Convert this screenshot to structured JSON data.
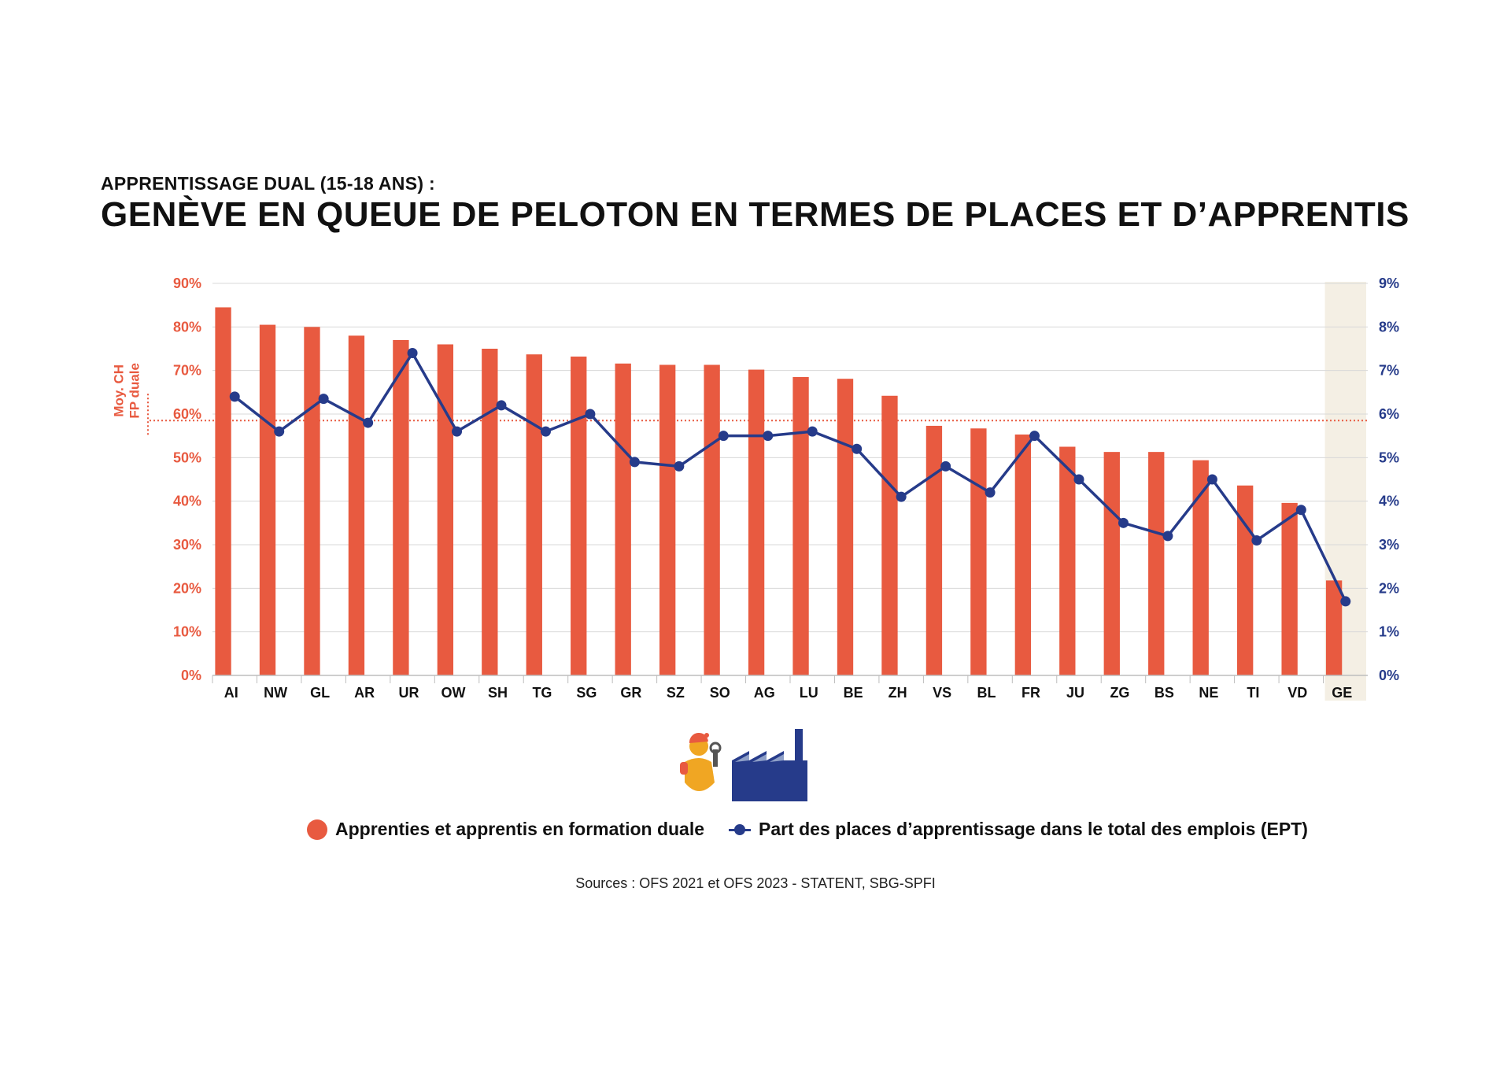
{
  "header": {
    "subtitle": "APPRENTISSAGE DUAL (15-18 ANS) :",
    "title": "GENÈVE EN QUEUE DE PELOTON EN TERMES DE PLACES ET D’APPRENTIS"
  },
  "colors": {
    "bar": "#e85a40",
    "line": "#263b8a",
    "highlight_bg": "#f4efe4",
    "grid": "#d8d8d8",
    "avg_line": "#e85a40"
  },
  "chart_data": {
    "type": "bar+line",
    "categories": [
      "AI",
      "NW",
      "GL",
      "AR",
      "UR",
      "OW",
      "SH",
      "TG",
      "SG",
      "GR",
      "SZ",
      "SO",
      "AG",
      "LU",
      "BE",
      "ZH",
      "VS",
      "BL",
      "FR",
      "JU",
      "ZG",
      "BS",
      "NE",
      "TI",
      "VD",
      "GE"
    ],
    "highlight_category": "GE",
    "series": [
      {
        "name": "Apprenties et apprentis en formation duale",
        "type": "bar",
        "axis": "left",
        "values": [
          84.5,
          80.5,
          80,
          78,
          77,
          76,
          75,
          73.7,
          73.2,
          71.6,
          71.3,
          71.3,
          70.2,
          68.5,
          68.1,
          64.2,
          57.3,
          56.7,
          55.3,
          52.5,
          51.3,
          51.3,
          49.4,
          43.6,
          39.6,
          21.8
        ]
      },
      {
        "name": "Part des places d’apprentissage dans le total des emplois (EPT)",
        "type": "line",
        "axis": "right",
        "values": [
          6.4,
          5.6,
          6.35,
          5.8,
          7.4,
          5.6,
          6.2,
          5.6,
          6.0,
          4.9,
          4.8,
          5.5,
          5.5,
          5.6,
          5.2,
          4.1,
          4.8,
          4.2,
          5.5,
          4.5,
          3.5,
          3.2,
          4.5,
          3.1,
          3.8,
          1.7
        ]
      }
    ],
    "left_axis": {
      "ylim": [
        0,
        90
      ],
      "ticks": [
        0,
        10,
        20,
        30,
        40,
        50,
        60,
        70,
        80,
        90
      ],
      "tick_labels": [
        "0%",
        "10%",
        "20%",
        "30%",
        "40%",
        "50%",
        "60%",
        "70%",
        "80%",
        "90%"
      ]
    },
    "right_axis": {
      "ylim": [
        0,
        9
      ],
      "ticks": [
        0,
        1,
        2,
        3,
        4,
        5,
        6,
        7,
        8,
        9
      ],
      "tick_labels": [
        "0%",
        "1%",
        "2%",
        "3%",
        "4%",
        "5%",
        "6%",
        "7%",
        "8%",
        "9%"
      ]
    },
    "average_line": {
      "value": 58.5,
      "label_line1": "Moy. CH",
      "label_line2": "FP duale"
    }
  },
  "legend": {
    "bar_label": "Apprenties et apprentis en formation duale",
    "line_label": "Part des places d’apprentissage dans le total des emplois (EPT)"
  },
  "sources": "Sources : OFS 2021 et OFS 2023 - STATENT, SBG-SPFI"
}
